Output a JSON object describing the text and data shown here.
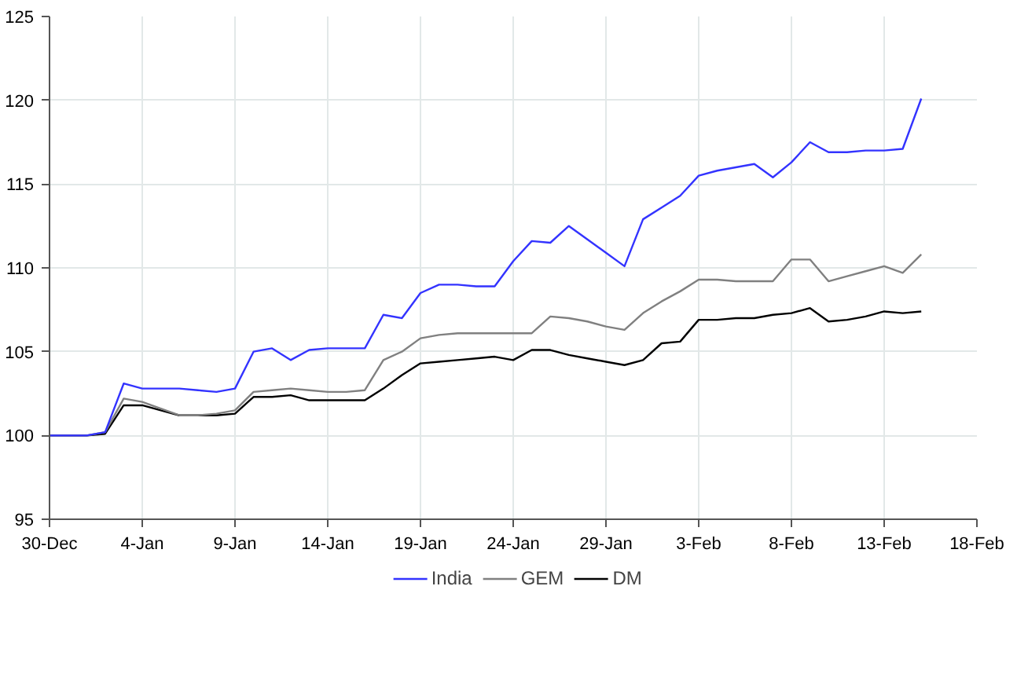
{
  "chart_data": {
    "type": "line",
    "categories": [
      "30-Dec",
      null,
      null,
      null,
      null,
      "4-Jan",
      null,
      null,
      null,
      null,
      "9-Jan",
      null,
      null,
      null,
      null,
      "14-Jan",
      null,
      null,
      null,
      null,
      "19-Jan",
      null,
      null,
      null,
      null,
      "24-Jan",
      null,
      null,
      null,
      null,
      "29-Jan",
      null,
      null,
      null,
      null,
      "3-Feb",
      null,
      null,
      null,
      null,
      "8-Feb",
      null,
      null,
      null,
      null,
      "13-Feb",
      null,
      null,
      null,
      null,
      "18-Feb"
    ],
    "series": [
      {
        "name": "India",
        "color": "#3333ff",
        "values": [
          100,
          100,
          100,
          100.2,
          103.1,
          102.8,
          102.8,
          102.8,
          102.7,
          102.6,
          102.8,
          105,
          105.2,
          104.5,
          105.1,
          105.2,
          105.2,
          105.2,
          107.2,
          107,
          108.5,
          109,
          109,
          108.9,
          108.9,
          110.4,
          111.6,
          111.5,
          112.5,
          111.7,
          110.9,
          110.1,
          112.9,
          113.6,
          114.3,
          115.5,
          115.8,
          116,
          116.2,
          115.4,
          116.3,
          117.5,
          116.9,
          116.9,
          117,
          117,
          117.1,
          120.1,
          null,
          null,
          null
        ]
      },
      {
        "name": "GEM",
        "color": "#808080",
        "values": [
          100,
          100,
          100,
          100.2,
          102.2,
          102,
          101.6,
          101.2,
          101.2,
          101.3,
          101.5,
          102.6,
          102.7,
          102.8,
          102.7,
          102.6,
          102.6,
          102.7,
          104.5,
          105,
          105.8,
          106,
          106.1,
          106.1,
          106.1,
          106.1,
          106.1,
          107.1,
          107,
          106.8,
          106.5,
          106.3,
          107.3,
          108,
          108.6,
          109.3,
          109.3,
          109.2,
          109.2,
          109.2,
          110.5,
          110.5,
          109.2,
          109.5,
          109.8,
          110.1,
          109.7,
          110.8,
          null,
          null,
          null
        ]
      },
      {
        "name": "DM",
        "color": "#000000",
        "values": [
          100,
          100,
          100,
          100.1,
          101.8,
          101.8,
          101.5,
          101.2,
          101.2,
          101.2,
          101.3,
          102.3,
          102.3,
          102.4,
          102.1,
          102.1,
          102.1,
          102.1,
          102.8,
          103.6,
          104.3,
          104.4,
          104.5,
          104.6,
          104.7,
          104.5,
          105.1,
          105.1,
          104.8,
          104.6,
          104.4,
          104.2,
          104.5,
          105.5,
          105.6,
          106.9,
          106.9,
          107,
          107,
          107.2,
          107.3,
          107.6,
          106.8,
          106.9,
          107.1,
          107.4,
          107.3,
          107.4,
          null,
          null,
          null
        ]
      }
    ],
    "ylim": [
      95,
      125
    ],
    "yticks": [
      95,
      100,
      105,
      110,
      115,
      120,
      125
    ],
    "grid": true,
    "legend": "bottom",
    "line_style": "solid"
  }
}
